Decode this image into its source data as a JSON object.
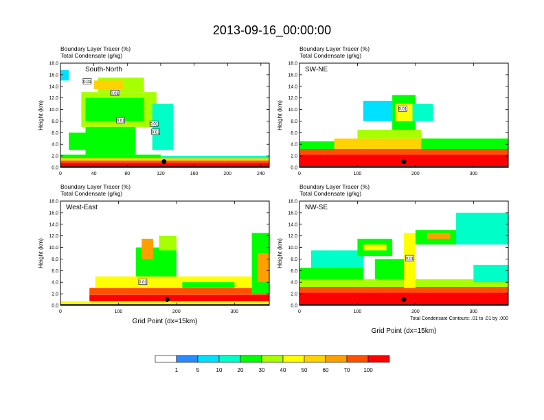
{
  "page_title": "2013-09-16_00:00:00",
  "chart_data": [
    {
      "type": "heatmap",
      "name": "south-north",
      "panel_label": "South-North",
      "title_lines": [
        "Boundary Layer Tracer   (%)",
        "Total Condensate   (g/kg)"
      ],
      "ylabel": "Height (km)",
      "xlabel": "",
      "xlim": [
        0,
        250
      ],
      "ylim": [
        0,
        18
      ],
      "xticks": [
        0,
        40,
        80,
        120,
        160,
        200,
        240
      ],
      "yticks": [
        0,
        2,
        4,
        6,
        8,
        10,
        12,
        14,
        16,
        18
      ],
      "ytick_labels": [
        "0.0",
        "2.0",
        "4.0",
        "6.0",
        "8.0",
        "10.0",
        "12.0",
        "14.0",
        "16.0",
        "18.0"
      ],
      "contour_labels": [
        {
          "text": "0.01",
          "x": 32,
          "y": 14.8
        },
        {
          "text": "0.01",
          "x": 65,
          "y": 12.8
        },
        {
          "text": "0.01",
          "x": 72,
          "y": 8.1
        },
        {
          "text": "0.01",
          "x": 112,
          "y": 7.5
        },
        {
          "text": "0.01",
          "x": 114,
          "y": 6.1
        }
      ],
      "marker": {
        "x": 124,
        "y": 1.0
      },
      "bands": [
        {
          "x0": 0,
          "x1": 250,
          "y0": 0.2,
          "y1": 0.8,
          "level": 100
        },
        {
          "x0": 0,
          "x1": 250,
          "y0": 0.8,
          "y1": 1.2,
          "level": 70
        },
        {
          "x0": 0,
          "x1": 250,
          "y0": 1.2,
          "y1": 1.6,
          "level": 50
        },
        {
          "x0": 0,
          "x1": 120,
          "y0": 1.6,
          "y1": 2.2,
          "level": 20
        },
        {
          "x0": 120,
          "x1": 250,
          "y0": 1.6,
          "y1": 2.0,
          "level": 10
        },
        {
          "x0": 30,
          "x1": 90,
          "y0": 2.2,
          "y1": 7.0,
          "level": 20
        },
        {
          "x0": 25,
          "x1": 115,
          "y0": 7.0,
          "y1": 13.0,
          "level": 30
        },
        {
          "x0": 30,
          "x1": 100,
          "y0": 8.0,
          "y1": 12.0,
          "level": 20
        },
        {
          "x0": 45,
          "x1": 100,
          "y0": 13.0,
          "y1": 15.5,
          "level": 30
        },
        {
          "x0": 40,
          "x1": 75,
          "y0": 13.5,
          "y1": 15.0,
          "level": 50
        },
        {
          "x0": 10,
          "x1": 30,
          "y0": 3.0,
          "y1": 6.0,
          "level": 20
        },
        {
          "x0": 0,
          "x1": 10,
          "y0": 15.0,
          "y1": 16.8,
          "level": 5
        },
        {
          "x0": 110,
          "x1": 135,
          "y0": 3.0,
          "y1": 11.0,
          "level": 10
        }
      ]
    },
    {
      "type": "heatmap",
      "name": "sw-ne",
      "panel_label": "SW-NE",
      "title_lines": [
        "Boundary Layer Tracer   (%)",
        "Total Condensate   (g/kg)"
      ],
      "ylabel": "Height (km)",
      "xlabel": "",
      "xlim": [
        0,
        360
      ],
      "ylim": [
        0,
        18
      ],
      "xticks": [
        0,
        100,
        200,
        300
      ],
      "yticks": [
        0,
        2,
        4,
        6,
        8,
        10,
        12,
        14,
        16,
        18
      ],
      "ytick_labels": [
        "0.0",
        "2.0",
        "4.0",
        "6.0",
        "8.0",
        "10.0",
        "12.0",
        "14.0",
        "16.0",
        "18.0"
      ],
      "contour_labels": [
        {
          "text": "0.01",
          "x": 178,
          "y": 10.1
        }
      ],
      "marker": {
        "x": 180,
        "y": 1.0
      },
      "bands": [
        {
          "x0": 0,
          "x1": 360,
          "y0": 0.2,
          "y1": 2.2,
          "level": 100
        },
        {
          "x0": 0,
          "x1": 360,
          "y0": 2.2,
          "y1": 3.2,
          "level": 70
        },
        {
          "x0": 60,
          "x1": 240,
          "y0": 3.2,
          "y1": 5.0,
          "level": 50
        },
        {
          "x0": 100,
          "x1": 210,
          "y0": 5.0,
          "y1": 6.5,
          "level": 30
        },
        {
          "x0": 0,
          "x1": 60,
          "y0": 3.2,
          "y1": 4.5,
          "level": 20
        },
        {
          "x0": 210,
          "x1": 360,
          "y0": 3.2,
          "y1": 5.0,
          "level": 20
        },
        {
          "x0": 160,
          "x1": 200,
          "y0": 6.5,
          "y1": 12.5,
          "level": 20
        },
        {
          "x0": 165,
          "x1": 195,
          "y0": 8.0,
          "y1": 11.0,
          "level": 40
        },
        {
          "x0": 195,
          "x1": 230,
          "y0": 8.0,
          "y1": 11.0,
          "level": 10
        },
        {
          "x0": 110,
          "x1": 160,
          "y0": 8.0,
          "y1": 11.5,
          "level": 5
        },
        {
          "x0": 0,
          "x1": 360,
          "y0": 0,
          "y1": 0.2,
          "level": 0
        }
      ]
    },
    {
      "type": "heatmap",
      "name": "west-east",
      "panel_label": "West-East",
      "title_lines": [
        "Boundary Layer Tracer   (%)",
        "Total Condensate   (g/kg)"
      ],
      "ylabel": "Height (km)",
      "xlabel": "Grid Point (dx=15km)",
      "xlim": [
        0,
        360
      ],
      "ylim": [
        0,
        18
      ],
      "xticks": [
        0,
        100,
        200,
        300
      ],
      "yticks": [
        0,
        2,
        4,
        6,
        8,
        10,
        12,
        14,
        16,
        18
      ],
      "ytick_labels": [
        "0.0",
        "2.0",
        "4.0",
        "6.0",
        "8.0",
        "10.0",
        "12.0",
        "14.0",
        "16.0",
        "18.0"
      ],
      "contour_labels": [
        {
          "text": "0.01",
          "x": 142,
          "y": 4.0
        }
      ],
      "marker": {
        "x": 184,
        "y": 1.0
      },
      "bands": [
        {
          "x0": 0,
          "x1": 360,
          "y0": 0.2,
          "y1": 0.7,
          "level": 40
        },
        {
          "x0": 50,
          "x1": 360,
          "y0": 0.7,
          "y1": 1.8,
          "level": 100
        },
        {
          "x0": 50,
          "x1": 360,
          "y0": 1.8,
          "y1": 3.0,
          "level": 70
        },
        {
          "x0": 60,
          "x1": 330,
          "y0": 3.0,
          "y1": 5.0,
          "level": 40
        },
        {
          "x0": 130,
          "x1": 200,
          "y0": 5.0,
          "y1": 10.0,
          "level": 20
        },
        {
          "x0": 140,
          "x1": 160,
          "y0": 8.0,
          "y1": 11.5,
          "level": 60
        },
        {
          "x0": 170,
          "x1": 200,
          "y0": 9.5,
          "y1": 12.0,
          "level": 30
        },
        {
          "x0": 330,
          "x1": 360,
          "y0": 2.0,
          "y1": 12.5,
          "level": 20
        },
        {
          "x0": 340,
          "x1": 360,
          "y0": 4.0,
          "y1": 9.0,
          "level": 60
        },
        {
          "x0": 210,
          "x1": 300,
          "y0": 3.0,
          "y1": 4.0,
          "level": 20
        }
      ]
    },
    {
      "type": "heatmap",
      "name": "nw-se",
      "panel_label": "NW-SE",
      "title_lines": [
        "Boundary Layer Tracer   (%)",
        "Total Condensate   (g/kg)"
      ],
      "ylabel": "Height (km)",
      "xlabel": "Grid Point (dx=15km)",
      "footnote": "Total Condensate Contours: .01 to .01 by .000",
      "xlim": [
        0,
        360
      ],
      "ylim": [
        0,
        18
      ],
      "xticks": [
        0,
        100,
        200,
        300
      ],
      "yticks": [
        0,
        2,
        4,
        6,
        8,
        10,
        12,
        14,
        16,
        18
      ],
      "ytick_labels": [
        "0.0",
        "2.0",
        "4.0",
        "6.0",
        "8.0",
        "10.0",
        "12.0",
        "14.0",
        "16.0",
        "18.0"
      ],
      "contour_labels": [
        {
          "text": "0.01",
          "x": 190,
          "y": 8.1
        }
      ],
      "marker": {
        "x": 180,
        "y": 1.0
      },
      "bands": [
        {
          "x0": 0,
          "x1": 360,
          "y0": 0.2,
          "y1": 2.2,
          "level": 100
        },
        {
          "x0": 0,
          "x1": 360,
          "y0": 2.2,
          "y1": 3.2,
          "level": 70
        },
        {
          "x0": 0,
          "x1": 360,
          "y0": 3.2,
          "y1": 4.5,
          "level": 30
        },
        {
          "x0": 0,
          "x1": 110,
          "y0": 4.5,
          "y1": 6.5,
          "level": 20
        },
        {
          "x0": 20,
          "x1": 110,
          "y0": 6.5,
          "y1": 9.5,
          "level": 10
        },
        {
          "x0": 100,
          "x1": 160,
          "y0": 8.5,
          "y1": 11.5,
          "level": 20
        },
        {
          "x0": 110,
          "x1": 150,
          "y0": 9.5,
          "y1": 10.5,
          "level": 40
        },
        {
          "x0": 180,
          "x1": 200,
          "y0": 3.0,
          "y1": 12.5,
          "level": 40
        },
        {
          "x0": 200,
          "x1": 270,
          "y0": 10.5,
          "y1": 13.0,
          "level": 20
        },
        {
          "x0": 220,
          "x1": 260,
          "y0": 11.5,
          "y1": 12.5,
          "level": 60
        },
        {
          "x0": 270,
          "x1": 360,
          "y0": 10.5,
          "y1": 16.0,
          "level": 10
        },
        {
          "x0": 130,
          "x1": 180,
          "y0": 4.5,
          "y1": 8.0,
          "level": 20
        },
        {
          "x0": 300,
          "x1": 360,
          "y0": 4.0,
          "y1": 7.0,
          "level": 10
        }
      ]
    }
  ],
  "legend": {
    "levels": [
      0,
      1,
      5,
      10,
      20,
      30,
      40,
      50,
      60,
      70,
      100
    ],
    "colors": [
      "#ffffff",
      "#2a8aff",
      "#00e0ff",
      "#00ffc8",
      "#00ff00",
      "#a8ff00",
      "#ffff00",
      "#ffd200",
      "#ffa000",
      "#ff5000",
      "#ff0000"
    ],
    "labels": [
      "1",
      "5",
      "10",
      "20",
      "30",
      "40",
      "50",
      "60",
      "70",
      "100"
    ]
  }
}
